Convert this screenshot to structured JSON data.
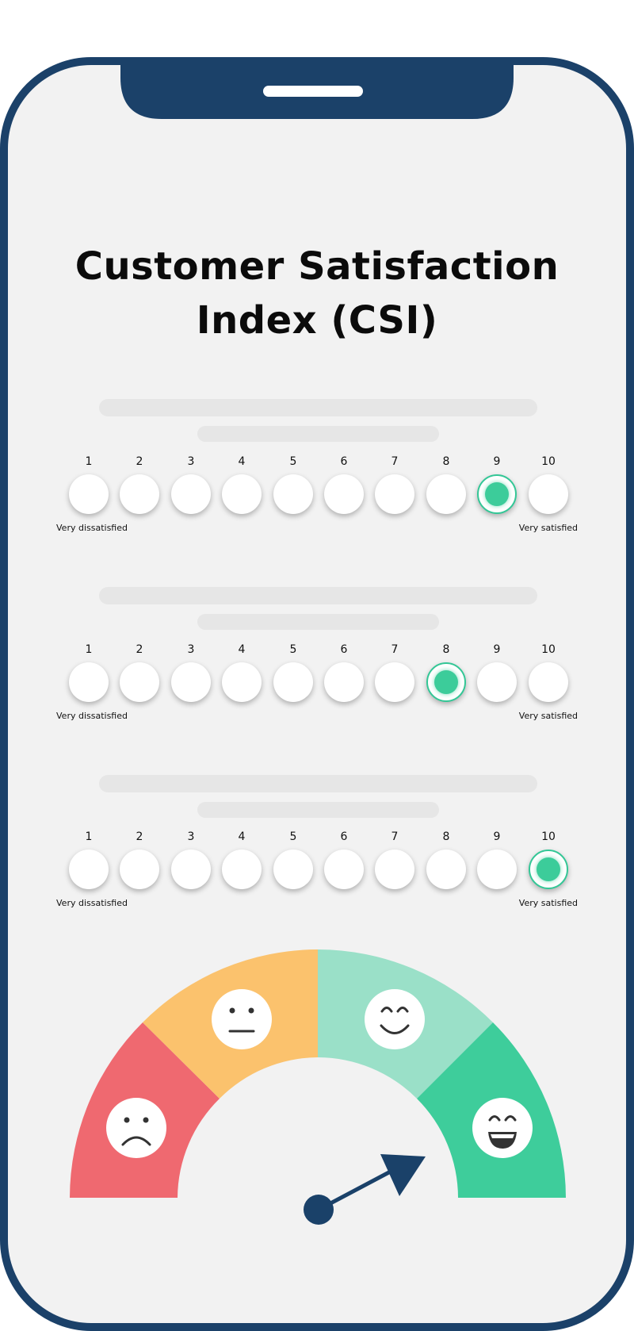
{
  "title_line1": "Customer Satisfaction",
  "title_line2": "Index (CSI)",
  "questions": [
    {
      "numbers": [
        "1",
        "2",
        "3",
        "4",
        "5",
        "6",
        "7",
        "8",
        "9",
        "10"
      ],
      "selected": 9,
      "low_label": "Very dissatisfied",
      "high_label": "Very satisfied"
    },
    {
      "numbers": [
        "1",
        "2",
        "3",
        "4",
        "5",
        "6",
        "7",
        "8",
        "9",
        "10"
      ],
      "selected": 8,
      "low_label": "Very dissatisfied",
      "high_label": "Very satisfied"
    },
    {
      "numbers": [
        "1",
        "2",
        "3",
        "4",
        "5",
        "6",
        "7",
        "8",
        "9",
        "10"
      ],
      "selected": 10,
      "low_label": "Very dissatisfied",
      "high_label": "Very satisfied"
    }
  ],
  "gauge": {
    "segments": [
      {
        "name": "very-unsatisfied",
        "color": "#ef6970",
        "icon": "sad-face-icon"
      },
      {
        "name": "neutral",
        "color": "#fbc26d",
        "icon": "neutral-face-icon"
      },
      {
        "name": "satisfied",
        "color": "#9ae0c8",
        "icon": "smiling-face-icon"
      },
      {
        "name": "very-satisfied",
        "color": "#3ecd9b",
        "icon": "grinning-face-icon"
      }
    ],
    "needle_color": "#1a4169"
  },
  "colors": {
    "phone_frame": "#1b4169",
    "screen_bg": "#f2f2f2",
    "selected": "#3ccc9a"
  }
}
